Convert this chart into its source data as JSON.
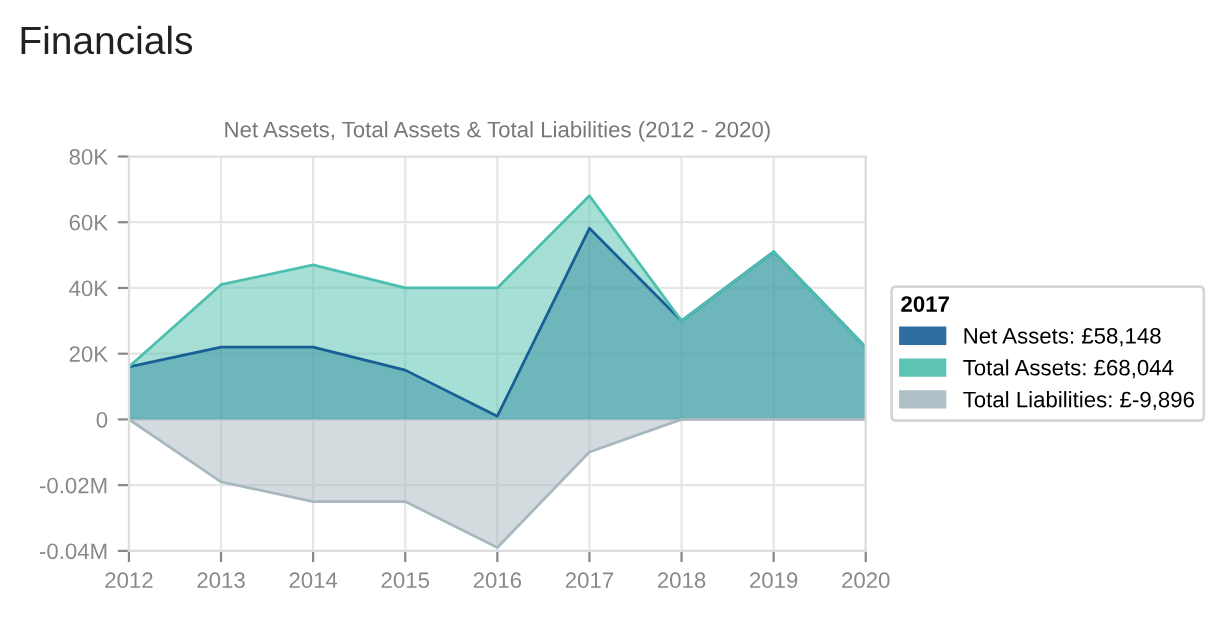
{
  "chart_data": {
    "type": "area",
    "title": "Financials",
    "subtitle": "Net Assets, Total Assets & Total Liabilities (2012 - 2020)",
    "x": [
      2012,
      2013,
      2014,
      2015,
      2016,
      2017,
      2018,
      2019,
      2020
    ],
    "series": [
      {
        "name": "Net Assets: £58,148",
        "color": "#1a5e96",
        "values": [
          16000,
          22000,
          22000,
          15000,
          1000,
          58148,
          30000,
          51000,
          22000
        ]
      },
      {
        "name": "Total Assets: £68,044",
        "color": "#4dbfae",
        "values": [
          16000,
          41000,
          47000,
          40000,
          40000,
          68044,
          30000,
          51000,
          22000
        ]
      },
      {
        "name": "Total Liabilities: £-9,896",
        "color": "#a8b8c0",
        "values": [
          0,
          -19000,
          -25000,
          -25000,
          -39000,
          -9896,
          0,
          0,
          0
        ]
      }
    ],
    "legend_title": "2017",
    "legend": "right",
    "xlim": [
      2012,
      2020
    ],
    "xticks": [
      2012,
      2013,
      2014,
      2015,
      2016,
      2017,
      2018,
      2019,
      2020
    ],
    "ylim": [
      -40000,
      80000
    ],
    "yticks": [
      {
        "value": -40000,
        "label": "-0.04M"
      },
      {
        "value": -20000,
        "label": "-0.02M"
      },
      0,
      {
        "value": 20000,
        "label": "20K"
      },
      {
        "value": 40000,
        "label": "40K"
      },
      {
        "value": 60000,
        "label": "60K"
      },
      {
        "value": 80000,
        "label": "80K"
      }
    ],
    "grid": true
  }
}
